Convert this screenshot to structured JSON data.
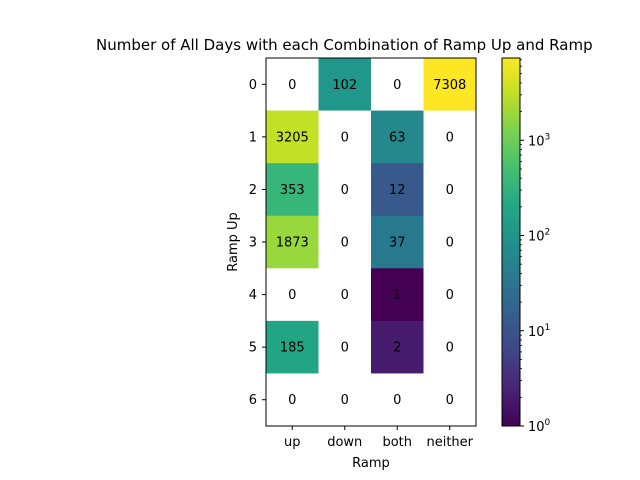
{
  "chart_data": {
    "type": "heatmap",
    "title": "Number of All Days with each Combination of Ramp Up and Ramp",
    "xlabel": "Ramp",
    "ylabel": "Ramp Up",
    "x_categories": [
      "up",
      "down",
      "both",
      "neither"
    ],
    "y_categories": [
      "0",
      "1",
      "2",
      "3",
      "4",
      "5",
      "6"
    ],
    "values": [
      [
        0,
        102,
        0,
        7308
      ],
      [
        3205,
        0,
        63,
        0
      ],
      [
        353,
        0,
        12,
        0
      ],
      [
        1873,
        0,
        37,
        0
      ],
      [
        0,
        0,
        1,
        0
      ],
      [
        185,
        0,
        2,
        0
      ],
      [
        0,
        0,
        0,
        0
      ]
    ],
    "cell_labels": [
      [
        "0",
        "102",
        "0",
        "7308"
      ],
      [
        "3205",
        "0",
        "63",
        "0"
      ],
      [
        "353",
        "0",
        "12",
        "0"
      ],
      [
        "1873",
        "0",
        "37",
        "0"
      ],
      [
        "0",
        "0",
        "1",
        "0"
      ],
      [
        "185",
        "0",
        "2",
        "0"
      ],
      [
        "0",
        "0",
        "0",
        "0"
      ]
    ],
    "zero_cells_blank": true,
    "color_scale": {
      "type": "log",
      "colormap": "viridis",
      "range": [
        1,
        7308
      ],
      "ticks": [
        {
          "base": "10",
          "exp": "0",
          "value": 1
        },
        {
          "base": "10",
          "exp": "1",
          "value": 10
        },
        {
          "base": "10",
          "exp": "2",
          "value": 100
        },
        {
          "base": "10",
          "exp": "3",
          "value": 1000
        }
      ]
    },
    "grid": false,
    "legend": "colorbar-right"
  }
}
